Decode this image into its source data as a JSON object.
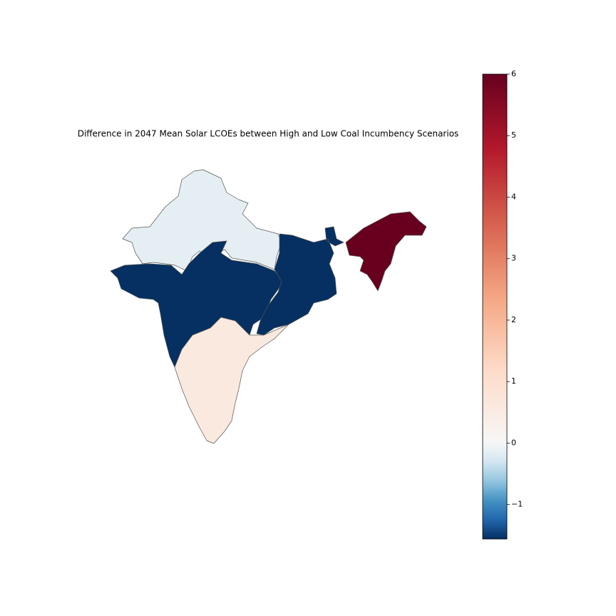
{
  "chart_data": {
    "type": "choropleth",
    "title": "Difference in 2047 Mean Solar LCOEs between High and Low Coal Incumbency Scenarios",
    "values": [
      -0.16,
      -1.56,
      -1.56,
      6,
      0.6
    ],
    "colormap": "RdBu_r",
    "norm_center": 0,
    "clim": [
      -1.56,
      6
    ],
    "cticks": [
      {
        "value": -1,
        "label": "−1"
      },
      0,
      1,
      2,
      3,
      4,
      5,
      6
    ]
  }
}
